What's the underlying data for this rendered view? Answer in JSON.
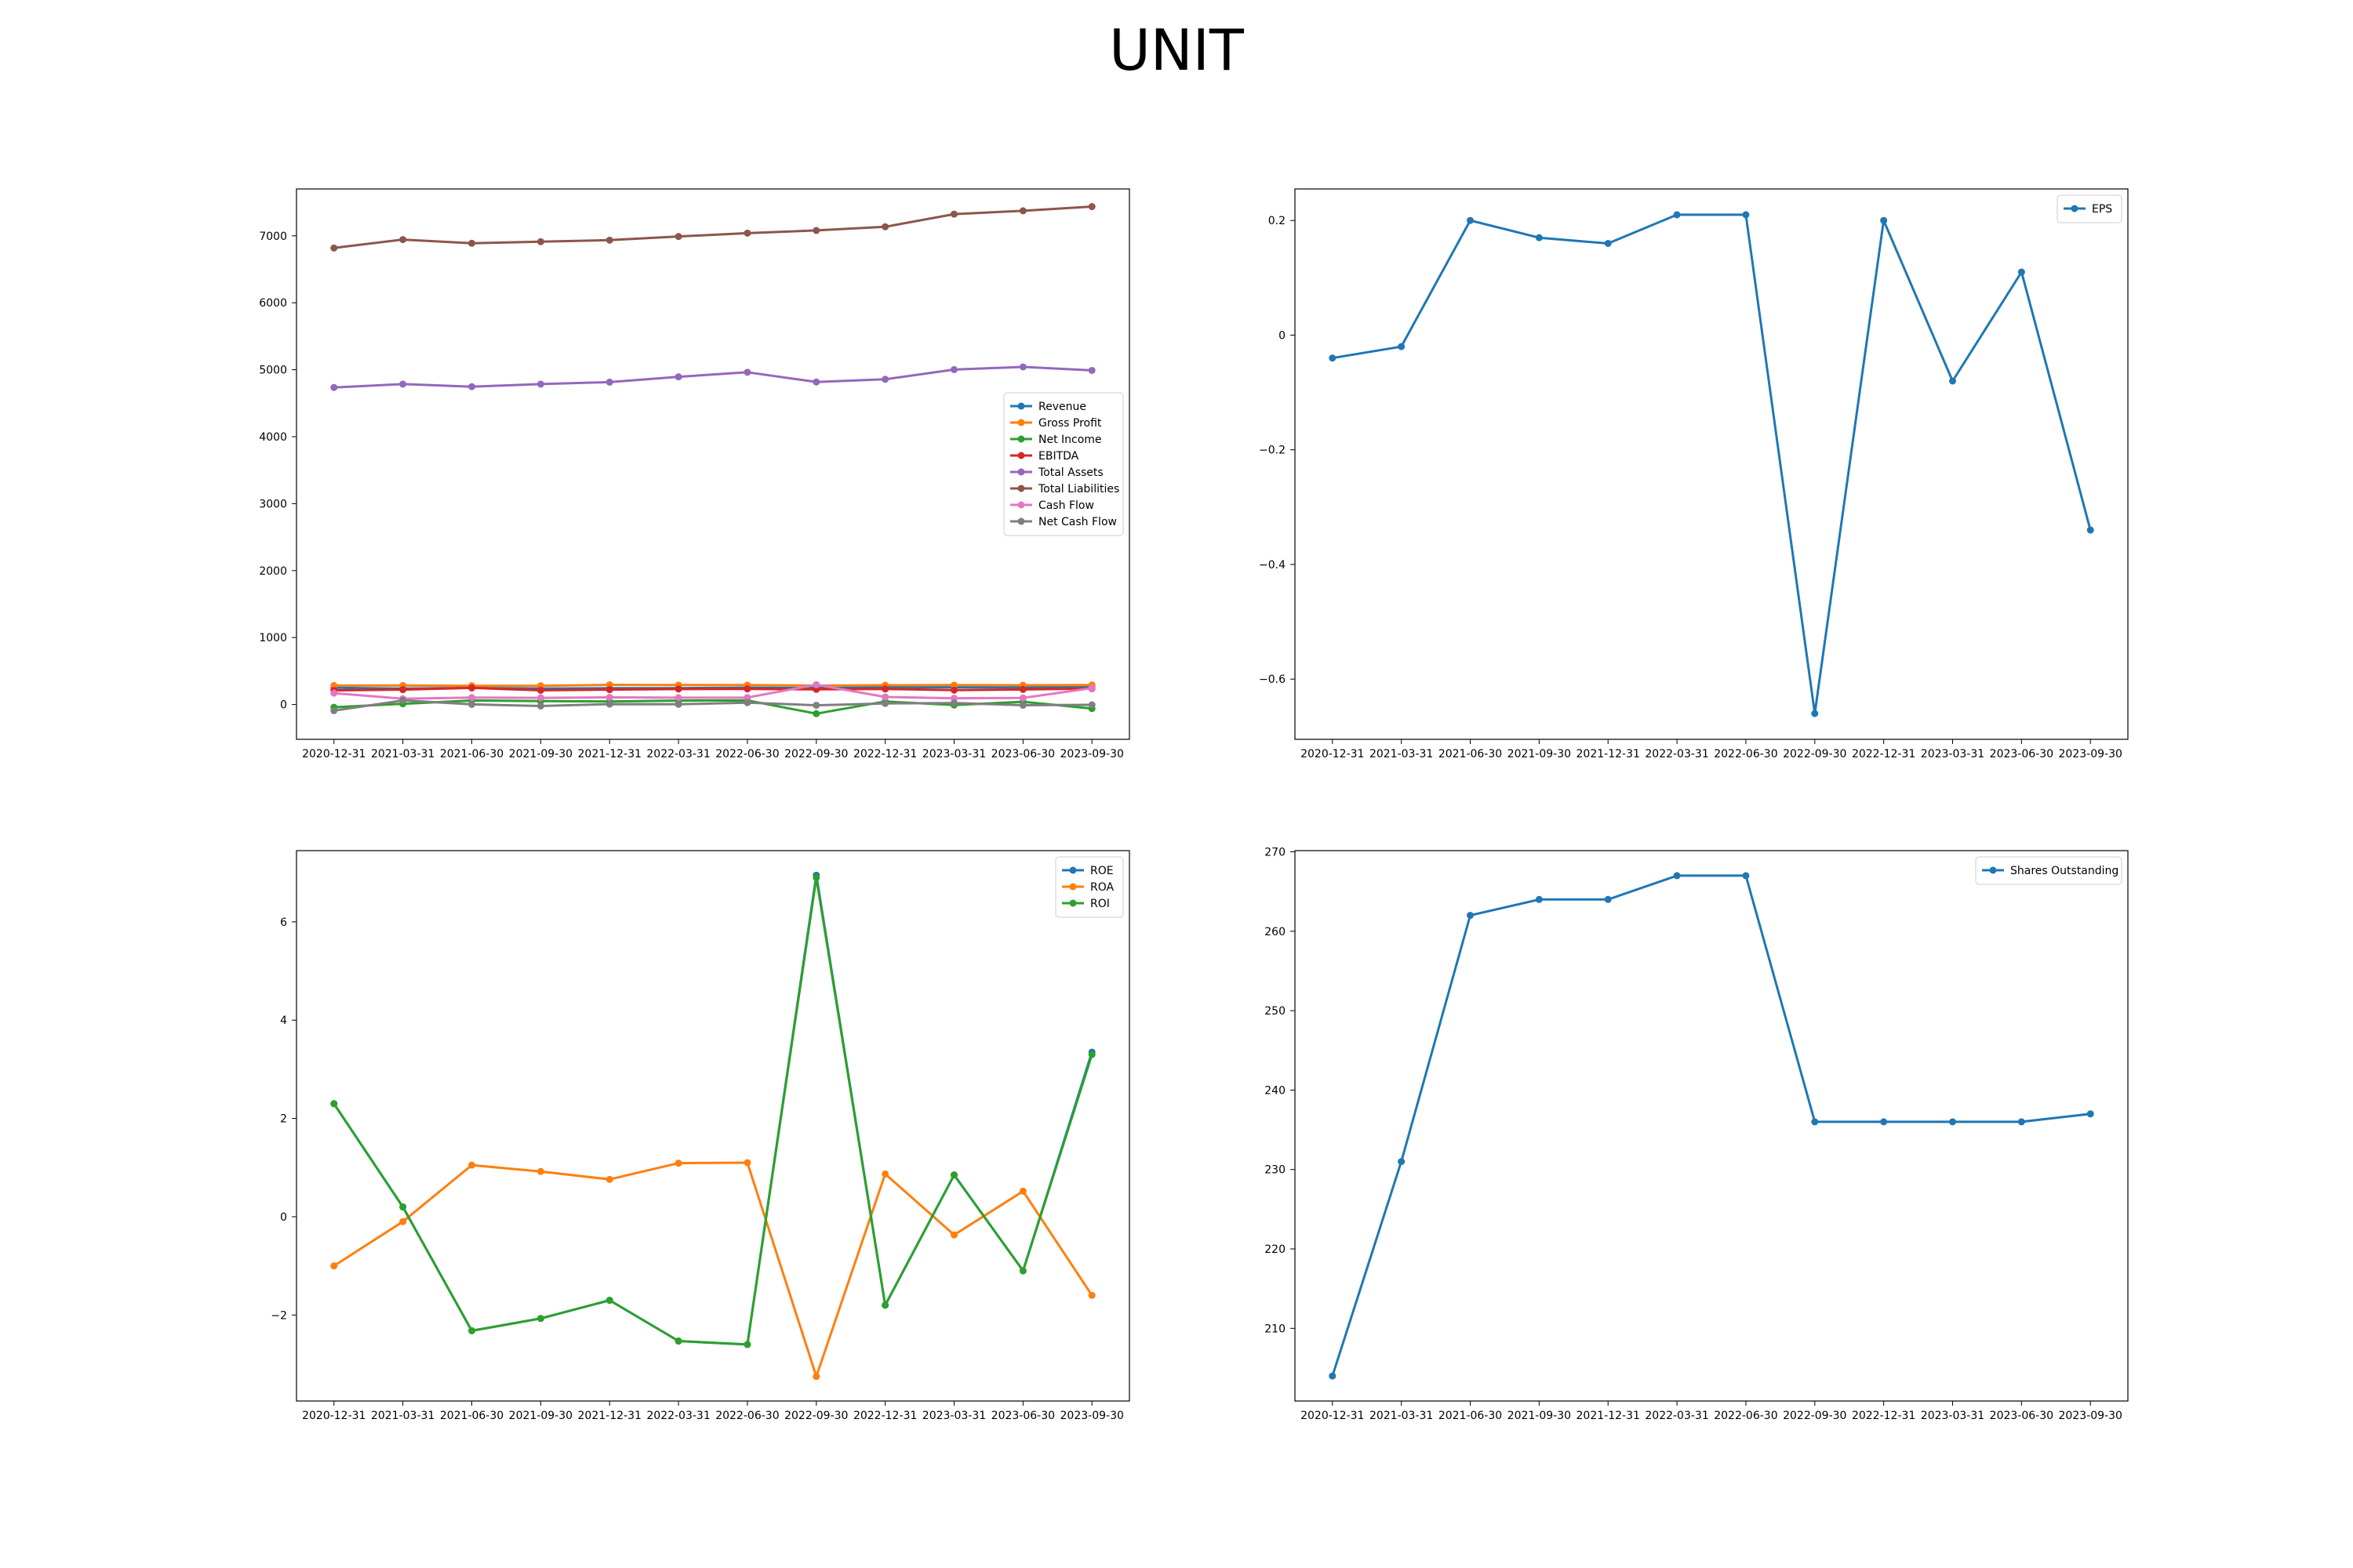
{
  "figure": {
    "title": "UNIT"
  },
  "chart_data": [
    {
      "type": "line",
      "x": [
        "2020-12-31",
        "2021-03-31",
        "2021-06-30",
        "2021-09-30",
        "2021-12-31",
        "2022-03-31",
        "2022-06-30",
        "2022-09-30",
        "2022-12-31",
        "2023-03-31",
        "2023-06-30",
        "2023-09-30"
      ],
      "ylim": [
        -520,
        7700
      ],
      "yticks": [
        0,
        1000,
        2000,
        3000,
        4000,
        5000,
        6000,
        7000
      ],
      "grid": false,
      "legend": "center-right",
      "series": [
        {
          "name": "Revenue",
          "color": "#1f77b4",
          "values": [
            251,
            238,
            248,
            239,
            243,
            245,
            252,
            247,
            256,
            258,
            255,
            262
          ]
        },
        {
          "name": "Gross Profit",
          "color": "#ff7f0e",
          "values": [
            283,
            283,
            280,
            280,
            294,
            290,
            290,
            282,
            288,
            290,
            288,
            292
          ]
        },
        {
          "name": "Net Income",
          "color": "#2ca02c",
          "values": [
            -41,
            10,
            60,
            51,
            45,
            58,
            61,
            -137,
            45,
            -8,
            41,
            -61
          ]
        },
        {
          "name": "EBITDA",
          "color": "#d62728",
          "values": [
            211,
            222,
            248,
            212,
            222,
            231,
            233,
            226,
            232,
            214,
            225,
            238
          ]
        },
        {
          "name": "Total Assets",
          "color": "#9467bd",
          "values": [
            4735,
            4785,
            4747,
            4785,
            4815,
            4894,
            4962,
            4817,
            4857,
            5002,
            5042,
            4990
          ]
        },
        {
          "name": "Total Liabilities",
          "color": "#8c564b",
          "values": [
            6818,
            6944,
            6889,
            6912,
            6935,
            6990,
            7040,
            7080,
            7135,
            7324,
            7373,
            7436
          ]
        },
        {
          "name": "Cash Flow",
          "color": "#e377c2",
          "values": [
            170,
            86,
            103,
            100,
            107,
            102,
            104,
            296,
            112,
            94,
            98,
            245
          ]
        },
        {
          "name": "Net Cash Flow",
          "color": "#7f7f7f",
          "values": [
            -92,
            61,
            2,
            -22,
            6,
            3,
            28,
            -12,
            16,
            22,
            -11,
            -5
          ]
        }
      ]
    },
    {
      "type": "line",
      "x": [
        "2020-12-31",
        "2021-03-31",
        "2021-06-30",
        "2021-09-30",
        "2021-12-31",
        "2022-03-31",
        "2022-06-30",
        "2022-09-30",
        "2022-12-31",
        "2023-03-31",
        "2023-06-30",
        "2023-09-30"
      ],
      "ylim": [
        -0.705,
        0.255
      ],
      "yticks": [
        0.2,
        0.0,
        -0.2,
        -0.4,
        -0.6
      ],
      "grid": false,
      "legend": "top-right",
      "series": [
        {
          "name": "EPS",
          "color": "#1f77b4",
          "values": [
            -0.04,
            -0.02,
            0.2,
            0.17,
            0.16,
            0.21,
            0.21,
            -0.66,
            0.2,
            -0.08,
            0.11,
            -0.34
          ]
        }
      ]
    },
    {
      "type": "line",
      "x": [
        "2020-12-31",
        "2021-03-31",
        "2021-06-30",
        "2021-09-30",
        "2021-12-31",
        "2022-03-31",
        "2022-06-30",
        "2022-09-30",
        "2022-12-31",
        "2023-03-31",
        "2023-06-30",
        "2023-09-30"
      ],
      "ylim": [
        -3.75,
        7.45
      ],
      "yticks": [
        -2,
        0,
        2,
        4,
        6
      ],
      "grid": false,
      "legend": "top-right",
      "series": [
        {
          "name": "ROE",
          "color": "#1f77b4",
          "values": [
            2.3,
            0.2,
            -2.32,
            -2.07,
            -1.7,
            -2.53,
            -2.6,
            6.95,
            -1.8,
            0.85,
            -1.1,
            3.35
          ]
        },
        {
          "name": "ROA",
          "color": "#ff7f0e",
          "values": [
            -1.0,
            -0.1,
            1.05,
            0.92,
            0.76,
            1.09,
            1.1,
            -3.25,
            0.87,
            -0.37,
            0.52,
            -1.6
          ]
        },
        {
          "name": "ROI",
          "color": "#2ca02c",
          "values": [
            2.3,
            0.2,
            -2.32,
            -2.07,
            -1.7,
            -2.53,
            -2.6,
            6.9,
            -1.8,
            0.85,
            -1.1,
            3.3
          ]
        }
      ]
    },
    {
      "type": "line",
      "x": [
        "2020-12-31",
        "2021-03-31",
        "2021-06-30",
        "2021-09-30",
        "2021-12-31",
        "2022-03-31",
        "2022-06-30",
        "2022-09-30",
        "2022-12-31",
        "2023-03-31",
        "2023-06-30",
        "2023-09-30"
      ],
      "ylim": [
        200.85,
        270.15
      ],
      "yticks": [
        210,
        220,
        230,
        240,
        250,
        260,
        270
      ],
      "grid": false,
      "legend": "top-right",
      "series": [
        {
          "name": "Shares Outstanding",
          "color": "#1f77b4",
          "values": [
            204,
            231,
            262,
            264,
            264,
            267,
            267,
            236,
            236,
            236,
            236,
            237
          ]
        }
      ]
    }
  ]
}
